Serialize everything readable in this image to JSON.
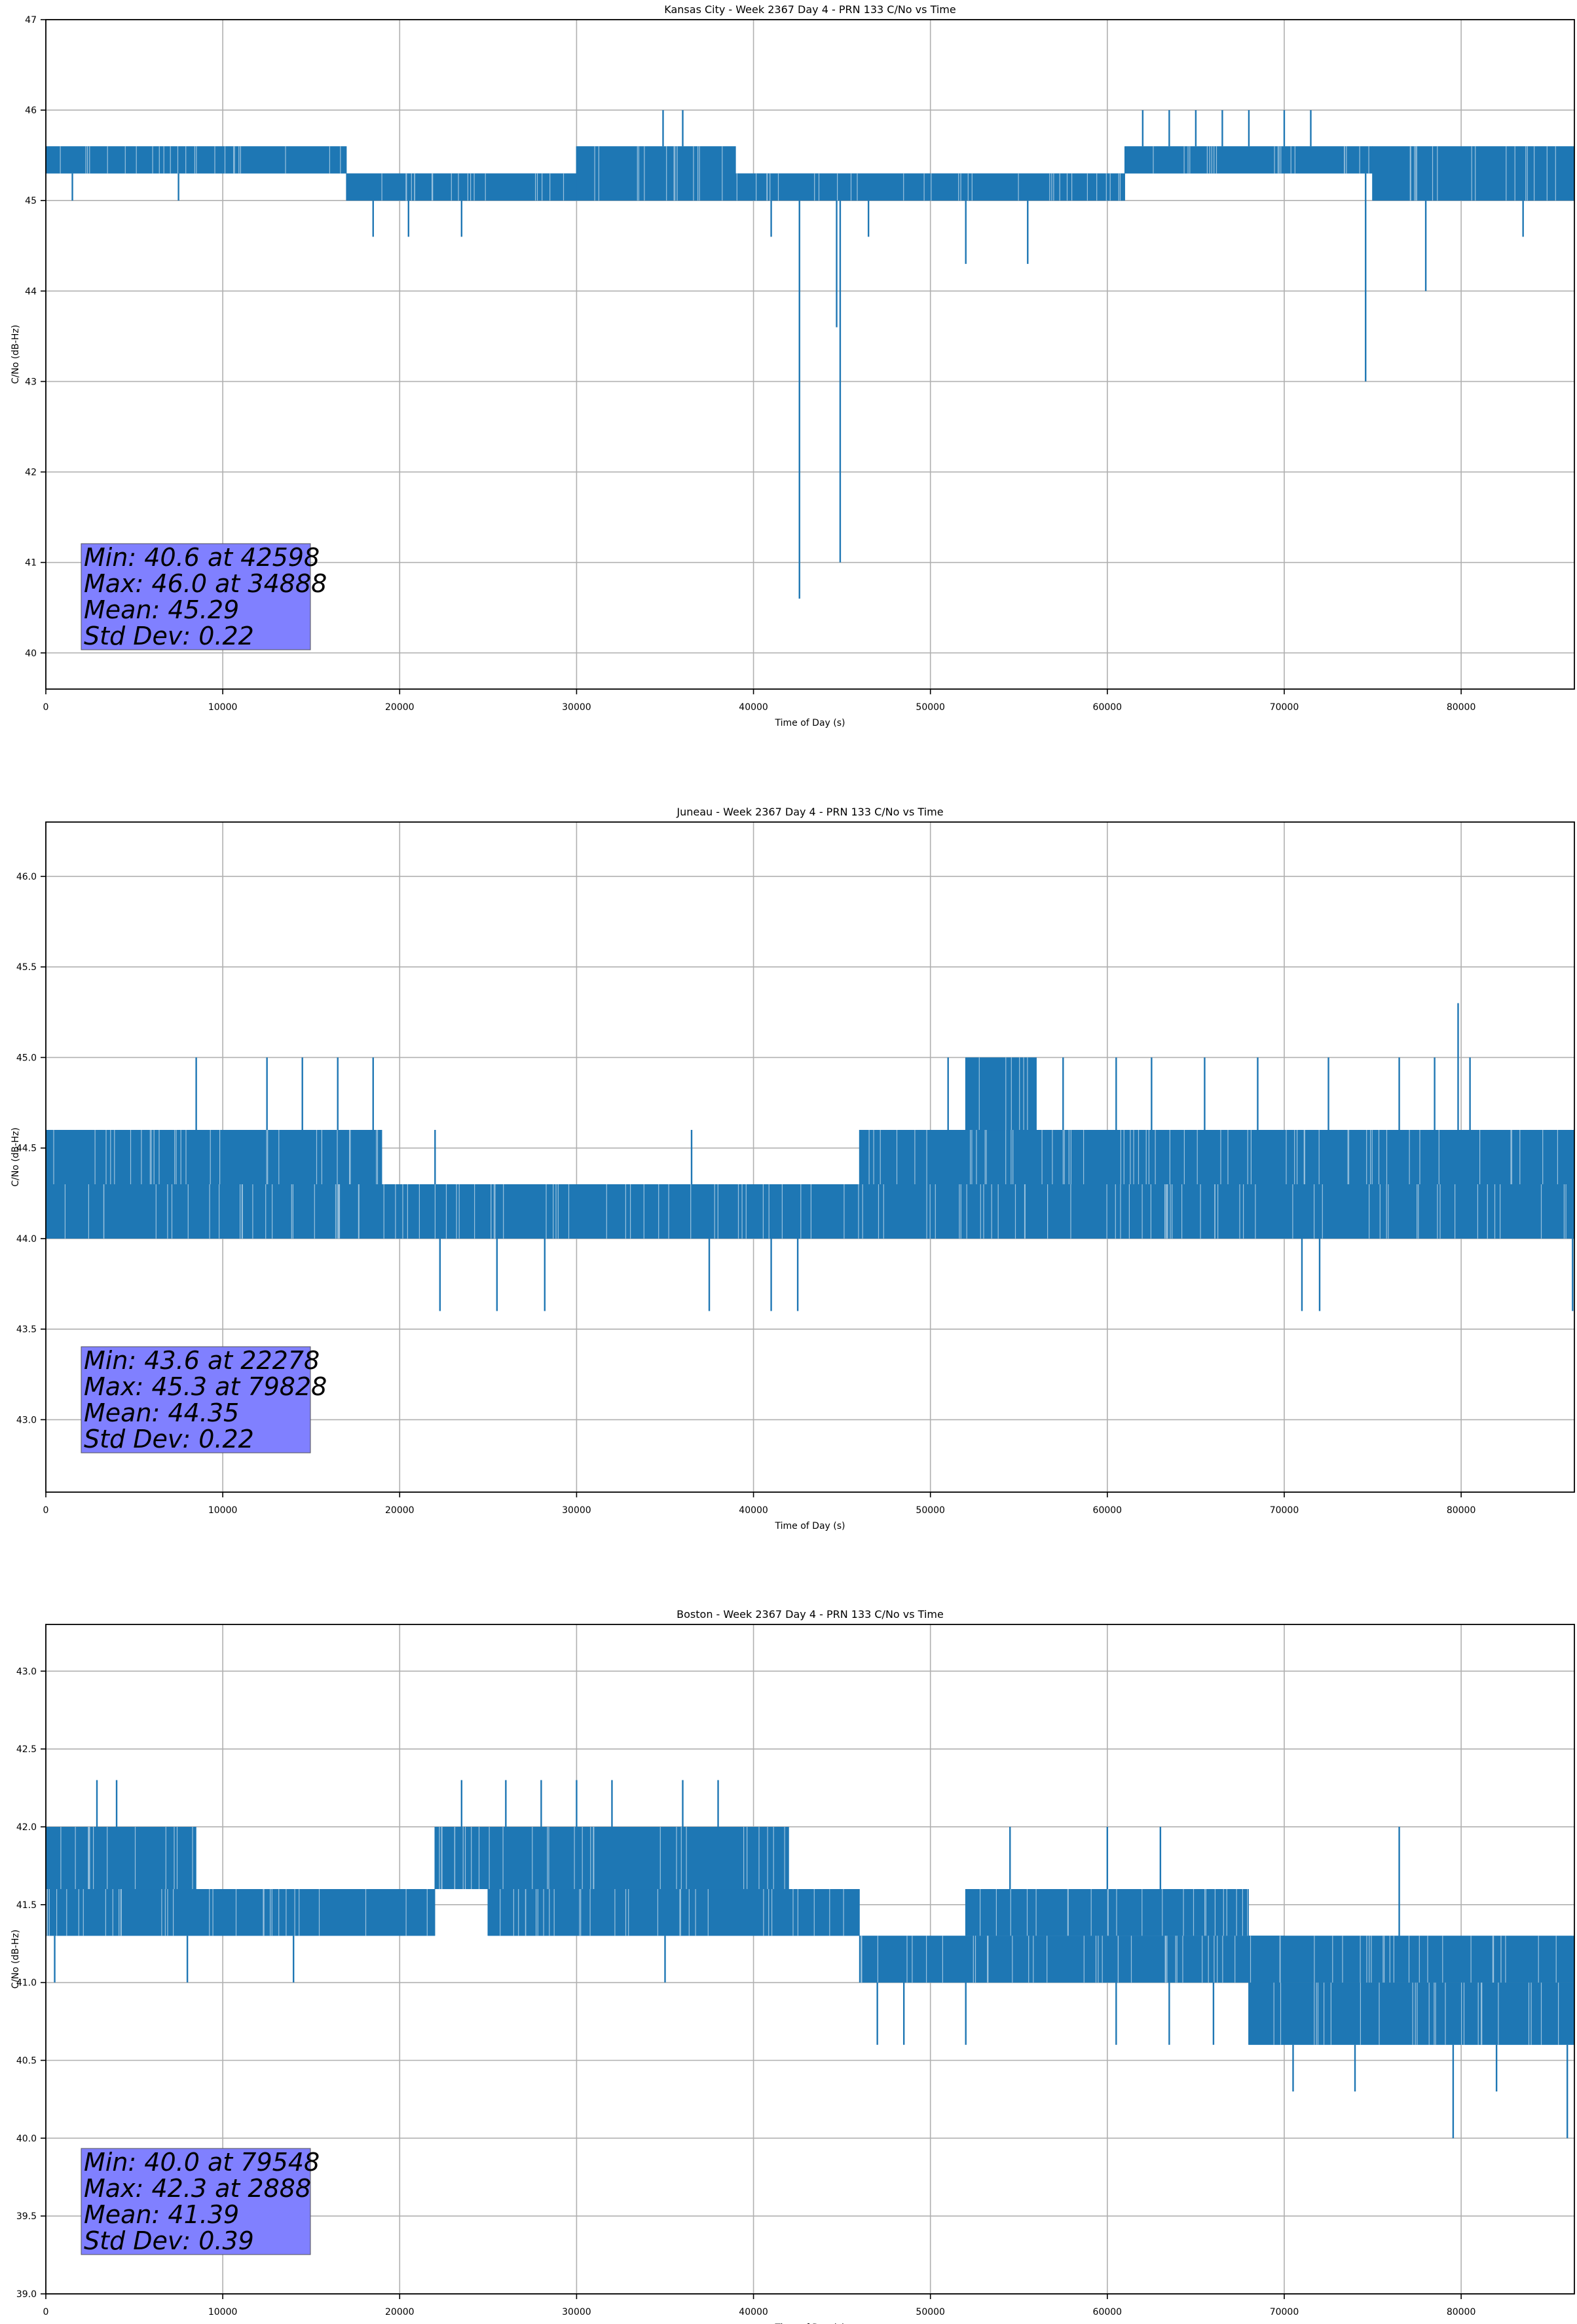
{
  "figure": {
    "background": "#ffffff",
    "line_color": "#1f77b4",
    "grid_color": "#b0b0b0",
    "stats_box_color": "#8080ff"
  },
  "chart_data": [
    {
      "type": "line",
      "title": "Kansas City - Week 2367 Day 4 - PRN 133 C/No vs Time",
      "xlabel": "Time of Day (s)",
      "ylabel": "C/No (dB-Hz)",
      "xlim": [
        0,
        86400
      ],
      "ylim": [
        39.6,
        47.0
      ],
      "xticks": [
        0,
        10000,
        20000,
        30000,
        40000,
        50000,
        60000,
        70000,
        80000
      ],
      "xtick_labels": [
        "0",
        "10000",
        "20000",
        "30000",
        "40000",
        "50000",
        "60000",
        "70000",
        "80000"
      ],
      "yticks": [
        40,
        41,
        42,
        43,
        44,
        45,
        46,
        47
      ],
      "ytick_labels": [
        "40",
        "41",
        "42",
        "43",
        "44",
        "45",
        "46",
        "47"
      ],
      "grid": true,
      "series": [
        {
          "name": "C/No",
          "color": "#1f77b4",
          "segments": [
            {
              "x0": 0,
              "x1": 17000,
              "lo": 45.3,
              "hi": 45.6
            },
            {
              "x0": 17000,
              "x1": 21000,
              "lo": 45.0,
              "hi": 45.3
            },
            {
              "x0": 21000,
              "x1": 30000,
              "lo": 45.0,
              "hi": 45.3
            },
            {
              "x0": 30000,
              "x1": 39000,
              "lo": 45.0,
              "hi": 45.6
            },
            {
              "x0": 39000,
              "x1": 61000,
              "lo": 45.0,
              "hi": 45.3
            },
            {
              "x0": 61000,
              "x1": 75000,
              "lo": 45.3,
              "hi": 45.6
            },
            {
              "x0": 75000,
              "x1": 86400,
              "lo": 45.0,
              "hi": 45.6
            }
          ],
          "spikes": [
            {
              "x": 42598,
              "y": 40.6
            },
            {
              "x": 44900,
              "y": 41.0
            },
            {
              "x": 44700,
              "y": 43.6
            },
            {
              "x": 74600,
              "y": 43.0
            },
            {
              "x": 78000,
              "y": 44.0
            },
            {
              "x": 52000,
              "y": 44.3
            },
            {
              "x": 55500,
              "y": 44.3
            },
            {
              "x": 34888,
              "y": 46.0
            },
            {
              "x": 36000,
              "y": 46.0
            },
            {
              "x": 62000,
              "y": 46.0
            },
            {
              "x": 63500,
              "y": 46.0
            },
            {
              "x": 65000,
              "y": 46.0
            },
            {
              "x": 66500,
              "y": 46.0
            },
            {
              "x": 68000,
              "y": 46.0
            },
            {
              "x": 70000,
              "y": 46.0
            },
            {
              "x": 71500,
              "y": 46.0
            },
            {
              "x": 18500,
              "y": 44.6
            },
            {
              "x": 20500,
              "y": 44.6
            },
            {
              "x": 23500,
              "y": 44.6
            },
            {
              "x": 41000,
              "y": 44.6
            },
            {
              "x": 46500,
              "y": 44.6
            },
            {
              "x": 83500,
              "y": 44.6
            },
            {
              "x": 1500,
              "y": 45.0
            },
            {
              "x": 7500,
              "y": 45.0
            }
          ]
        }
      ],
      "stats": [
        "Min: 40.6 at 42598",
        "Max: 46.0 at 34888",
        "Mean: 45.29",
        "Std Dev: 0.22"
      ]
    },
    {
      "type": "line",
      "title": "Juneau - Week 2367 Day 4 - PRN 133 C/No vs Time",
      "xlabel": "Time of Day (s)",
      "ylabel": "C/No (dB-Hz)",
      "xlim": [
        0,
        86400
      ],
      "ylim": [
        42.6,
        46.3
      ],
      "xticks": [
        0,
        10000,
        20000,
        30000,
        40000,
        50000,
        60000,
        70000,
        80000
      ],
      "xtick_labels": [
        "0",
        "10000",
        "20000",
        "30000",
        "40000",
        "50000",
        "60000",
        "70000",
        "80000"
      ],
      "yticks": [
        43.0,
        43.5,
        44.0,
        44.5,
        45.0,
        45.5,
        46.0
      ],
      "ytick_labels": [
        "43.0",
        "43.5",
        "44.0",
        "44.5",
        "45.0",
        "45.5",
        "46.0"
      ],
      "grid": true,
      "series": [
        {
          "name": "C/No",
          "color": "#1f77b4",
          "segments": [
            {
              "x0": 0,
              "x1": 19000,
              "lo": 44.3,
              "hi": 44.6
            },
            {
              "x0": 0,
              "x1": 19000,
              "lo": 44.0,
              "hi": 44.3
            },
            {
              "x0": 19000,
              "x1": 46000,
              "lo": 44.0,
              "hi": 44.3
            },
            {
              "x0": 46000,
              "x1": 86400,
              "lo": 44.3,
              "hi": 44.6
            },
            {
              "x0": 46000,
              "x1": 86400,
              "lo": 44.0,
              "hi": 44.3
            },
            {
              "x0": 52000,
              "x1": 56000,
              "lo": 44.6,
              "hi": 45.0
            }
          ],
          "spikes": [
            {
              "x": 22278,
              "y": 43.6
            },
            {
              "x": 25500,
              "y": 43.6
            },
            {
              "x": 28200,
              "y": 43.6
            },
            {
              "x": 37500,
              "y": 43.6
            },
            {
              "x": 41000,
              "y": 43.6
            },
            {
              "x": 42500,
              "y": 43.6
            },
            {
              "x": 71000,
              "y": 43.6
            },
            {
              "x": 72000,
              "y": 43.6
            },
            {
              "x": 86300,
              "y": 43.6
            },
            {
              "x": 79828,
              "y": 45.3
            },
            {
              "x": 8500,
              "y": 45.0
            },
            {
              "x": 12500,
              "y": 45.0
            },
            {
              "x": 14500,
              "y": 45.0
            },
            {
              "x": 16500,
              "y": 45.0
            },
            {
              "x": 18500,
              "y": 45.0
            },
            {
              "x": 51000,
              "y": 45.0
            },
            {
              "x": 57500,
              "y": 45.0
            },
            {
              "x": 60500,
              "y": 45.0
            },
            {
              "x": 62500,
              "y": 45.0
            },
            {
              "x": 65500,
              "y": 45.0
            },
            {
              "x": 68500,
              "y": 45.0
            },
            {
              "x": 72500,
              "y": 45.0
            },
            {
              "x": 76500,
              "y": 45.0
            },
            {
              "x": 78500,
              "y": 45.0
            },
            {
              "x": 80500,
              "y": 45.0
            },
            {
              "x": 22000,
              "y": 44.6
            },
            {
              "x": 36500,
              "y": 44.6
            }
          ]
        }
      ],
      "stats": [
        "Min: 43.6 at 22278",
        "Max: 45.3 at 79828",
        "Mean: 44.35",
        "Std Dev: 0.22"
      ]
    },
    {
      "type": "line",
      "title": "Boston - Week 2367 Day 4 - PRN 133 C/No vs Time",
      "xlabel": "Time of Day (s)",
      "ylabel": "C/No (dB-Hz)",
      "xlim": [
        0,
        86400
      ],
      "ylim": [
        39.0,
        43.3
      ],
      "xticks": [
        0,
        10000,
        20000,
        30000,
        40000,
        50000,
        60000,
        70000,
        80000
      ],
      "xtick_labels": [
        "0",
        "10000",
        "20000",
        "30000",
        "40000",
        "50000",
        "60000",
        "70000",
        "80000"
      ],
      "yticks": [
        39.0,
        39.5,
        40.0,
        40.5,
        41.0,
        41.5,
        42.0,
        42.5,
        43.0
      ],
      "ytick_labels": [
        "39.0",
        "39.5",
        "40.0",
        "40.5",
        "41.0",
        "41.5",
        "42.0",
        "42.5",
        "43.0"
      ],
      "grid": true,
      "series": [
        {
          "name": "C/No",
          "color": "#1f77b4",
          "segments": [
            {
              "x0": 0,
              "x1": 8500,
              "lo": 41.6,
              "hi": 42.0
            },
            {
              "x0": 0,
              "x1": 22000,
              "lo": 41.3,
              "hi": 41.6
            },
            {
              "x0": 22000,
              "x1": 42000,
              "lo": 41.6,
              "hi": 42.0
            },
            {
              "x0": 25000,
              "x1": 46000,
              "lo": 41.3,
              "hi": 41.6
            },
            {
              "x0": 46000,
              "x1": 70000,
              "lo": 41.0,
              "hi": 41.3
            },
            {
              "x0": 52000,
              "x1": 68000,
              "lo": 41.3,
              "hi": 41.6
            },
            {
              "x0": 68000,
              "x1": 86400,
              "lo": 40.6,
              "hi": 41.0
            },
            {
              "x0": 68000,
              "x1": 86400,
              "lo": 41.0,
              "hi": 41.3
            }
          ],
          "spikes": [
            {
              "x": 2888,
              "y": 42.3
            },
            {
              "x": 4000,
              "y": 42.3
            },
            {
              "x": 23500,
              "y": 42.3
            },
            {
              "x": 26000,
              "y": 42.3
            },
            {
              "x": 28000,
              "y": 42.3
            },
            {
              "x": 30000,
              "y": 42.3
            },
            {
              "x": 32000,
              "y": 42.3
            },
            {
              "x": 36000,
              "y": 42.3
            },
            {
              "x": 38000,
              "y": 42.3
            },
            {
              "x": 79548,
              "y": 40.0
            },
            {
              "x": 86000,
              "y": 40.0
            },
            {
              "x": 70500,
              "y": 40.3
            },
            {
              "x": 74000,
              "y": 40.3
            },
            {
              "x": 82000,
              "y": 40.3
            },
            {
              "x": 500,
              "y": 41.0
            },
            {
              "x": 8000,
              "y": 41.0
            },
            {
              "x": 14000,
              "y": 41.0
            },
            {
              "x": 35000,
              "y": 41.0
            },
            {
              "x": 47000,
              "y": 40.6
            },
            {
              "x": 48500,
              "y": 40.6
            },
            {
              "x": 52000,
              "y": 40.6
            },
            {
              "x": 60500,
              "y": 40.6
            },
            {
              "x": 63500,
              "y": 40.6
            },
            {
              "x": 66000,
              "y": 40.6
            },
            {
              "x": 60000,
              "y": 42.0
            },
            {
              "x": 63000,
              "y": 42.0
            },
            {
              "x": 54500,
              "y": 42.0
            },
            {
              "x": 76500,
              "y": 42.0
            }
          ]
        }
      ],
      "stats": [
        "Min: 40.0 at 79548",
        "Max: 42.3 at 2888",
        "Mean: 41.39",
        "Std Dev: 0.39"
      ]
    }
  ]
}
